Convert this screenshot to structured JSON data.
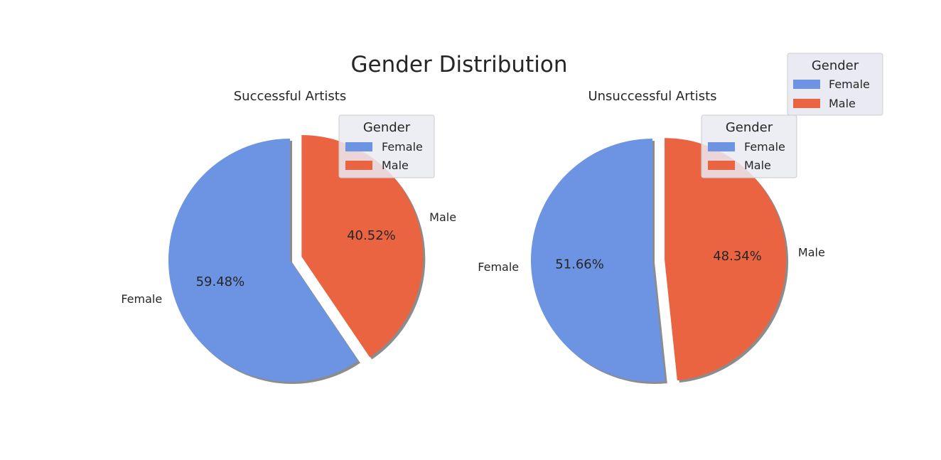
{
  "figure": {
    "title": "Gender Distribution",
    "figure_legend": {
      "title": "Gender",
      "items": [
        {
          "label": "Female",
          "color": "#6d93e3"
        },
        {
          "label": "Male",
          "color": "#eb6442"
        }
      ]
    }
  },
  "chart_data": [
    {
      "type": "pie",
      "title": "Successful Artists",
      "labels": [
        "Female",
        "Male"
      ],
      "values": [
        59.48,
        40.52
      ],
      "value_labels": [
        "59.48%",
        "40.52%"
      ],
      "colors": [
        "#6d93e3",
        "#eb6442"
      ],
      "explode": [
        0,
        0.1
      ],
      "start_angle_deg": 90,
      "shadow": true,
      "legend": {
        "title": "Gender",
        "placement": "upper right",
        "items": [
          "Female",
          "Male"
        ]
      }
    },
    {
      "type": "pie",
      "title": "Unsuccessful Artists",
      "labels": [
        "Female",
        "Male"
      ],
      "values": [
        51.66,
        48.34
      ],
      "value_labels": [
        "51.66%",
        "48.34%"
      ],
      "colors": [
        "#6d93e3",
        "#eb6442"
      ],
      "explode": [
        0,
        0.1
      ],
      "start_angle_deg": 90,
      "shadow": true,
      "legend": {
        "title": "Gender",
        "placement": "upper right",
        "items": [
          "Female",
          "Male"
        ]
      }
    }
  ]
}
